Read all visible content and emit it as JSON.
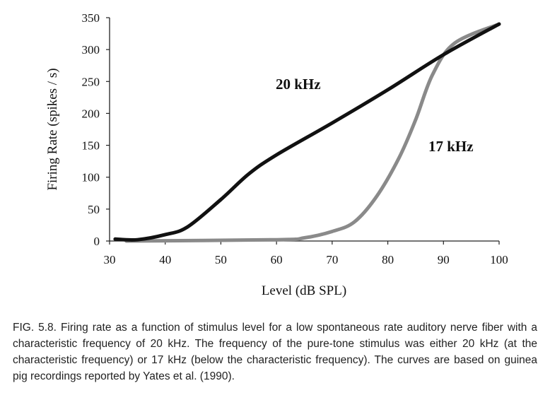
{
  "chart_data": {
    "type": "line",
    "title": "",
    "xlabel": "Level (dB SPL)",
    "ylabel": "Firing Rate (spikes / s)",
    "xlim": [
      30,
      100
    ],
    "ylim": [
      0,
      350
    ],
    "xticks": [
      30,
      40,
      50,
      60,
      70,
      80,
      90,
      100
    ],
    "yticks": [
      0,
      50,
      100,
      150,
      200,
      250,
      300,
      350
    ],
    "grid": false,
    "series": [
      {
        "name": "20 kHz",
        "color": "#111111",
        "x": [
          31,
          35,
          40,
          44,
          50,
          55,
          60,
          70,
          80,
          90,
          100
        ],
        "y": [
          3,
          2,
          10,
          22,
          65,
          105,
          135,
          185,
          237,
          292,
          340
        ]
      },
      {
        "name": "17 kHz",
        "color": "#8a8a8a",
        "x": [
          33,
          60,
          65,
          70,
          74,
          78,
          82,
          85,
          88,
          92,
          100
        ],
        "y": [
          0,
          2,
          5,
          15,
          30,
          70,
          130,
          190,
          260,
          310,
          340
        ]
      }
    ],
    "annotations": [
      "20 kHz",
      "17 kHz"
    ]
  },
  "caption": "FIG. 5.8. Firing rate as a function of stimulus level for a low spontaneous rate auditory nerve fiber with a characteristic frequency of 20 kHz. The frequency of the pure-tone stimulus was either 20 kHz (at the characteristic frequency) or 17 kHz (below the characteristic frequency). The curves are based on guinea pig recordings reported by Yates et al. (1990)."
}
